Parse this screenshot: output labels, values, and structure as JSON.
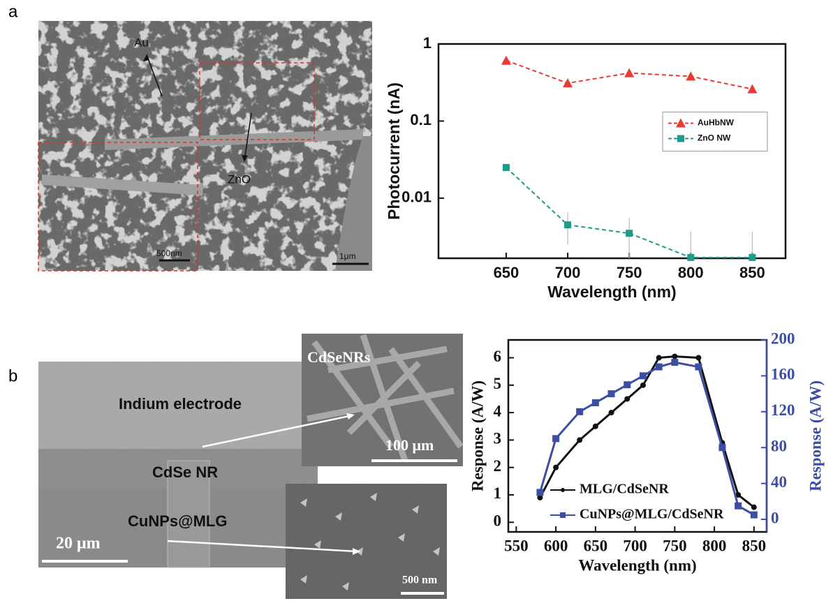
{
  "panel_labels": [
    "a",
    "b"
  ],
  "images": {
    "a_sem": {
      "labels": [
        "Au",
        "ZnO"
      ],
      "scale_inset": "500nm",
      "scale_main": "1μm"
    },
    "b_sem": {
      "labels": [
        "Indium electrode",
        "CdSe NR",
        "CuNPs@MLG"
      ],
      "scale": "20 μm"
    },
    "b_inset_top": {
      "label": "CdSeNRs",
      "scale": "100 μm"
    },
    "b_inset_bottom": {
      "scale": "500 nm"
    }
  },
  "chart_data": [
    {
      "type": "line",
      "y_scale": "log",
      "y_label": "Photocurrent (nA)",
      "x_label": "Wavelength (nm)",
      "xlim": [
        595,
        877
      ],
      "xticks": [
        650,
        700,
        750,
        800,
        850
      ],
      "ylim": [
        0.00166,
        1
      ],
      "yticks": [
        1,
        0.1,
        0.01
      ],
      "legend": "center right",
      "dashed": true,
      "series": [
        {
          "name": "AuHbNW",
          "color": "#ec3a33",
          "marker": "triangle",
          "x": [
            650,
            700,
            750,
            800,
            850
          ],
          "values": [
            0.61,
            0.31,
            0.42,
            0.38,
            0.26
          ]
        },
        {
          "name": "ZnO NW",
          "color": "#1b9c8c",
          "marker": "square",
          "x": [
            650,
            700,
            750,
            800,
            850
          ],
          "values": [
            0.025,
            0.0045,
            0.0035,
            0.0017,
            0.0017
          ],
          "errors": [
            0,
            0.002,
            0.002,
            0.002,
            0.002
          ]
        }
      ]
    },
    {
      "type": "line",
      "y_label": "Response (A/W)",
      "y2_label": "Response (A/W)",
      "x_label": "Wavelength (nm)",
      "xlim": [
        540,
        866
      ],
      "xticks": [
        550,
        600,
        650,
        700,
        750,
        800,
        850
      ],
      "ylim": [
        -0.35,
        6.65
      ],
      "yticks": [
        0,
        1,
        2,
        3,
        4,
        5,
        6
      ],
      "y2lim": [
        -14,
        200
      ],
      "y2ticks": [
        0,
        40,
        80,
        120,
        160,
        200
      ],
      "y2_color": "#3b4ea3",
      "legend": "lower left",
      "dashed": false,
      "series": [
        {
          "name": "MLG/CdSeNR",
          "color": "#111111",
          "marker": "circle",
          "x": [
            580,
            600,
            630,
            650,
            670,
            690,
            710,
            730,
            750,
            780,
            810,
            830,
            850
          ],
          "values": [
            0.9,
            2.0,
            3.0,
            3.5,
            4.0,
            4.5,
            5.0,
            6.0,
            6.05,
            6.0,
            2.9,
            1.0,
            0.55
          ]
        },
        {
          "name": "CuNPs@MLG/CdSeNR",
          "color": "#3b4ea3",
          "marker": "square",
          "axis": "y2",
          "x": [
            580,
            600,
            630,
            650,
            670,
            690,
            710,
            730,
            750,
            780,
            810,
            830,
            850
          ],
          "values": [
            30,
            90,
            120,
            130,
            140,
            150,
            160,
            170,
            175,
            170,
            80,
            15,
            5
          ]
        }
      ]
    }
  ]
}
